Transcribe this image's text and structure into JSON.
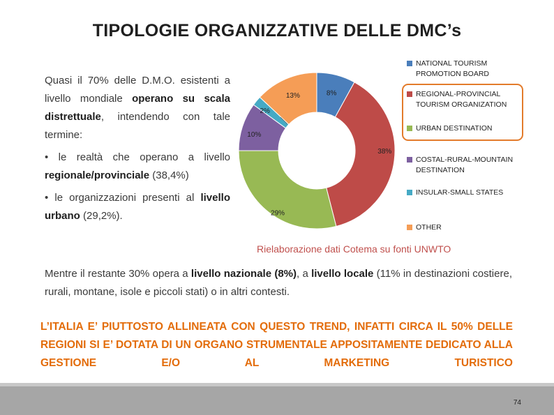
{
  "title": "TIPOLOGIE ORGANIZZATIVE DELLE DMC’s",
  "left": {
    "p1": {
      "t1": "Quasi il 70% delle D.M.O. esistenti a livello mondiale ",
      "b1": "operano su scala distrettuale",
      "t2": ", intendendo con tale termine:"
    },
    "p2": {
      "t1": "• le realtà che operano a livello ",
      "b1": "regionale/provinciale",
      "t2": " (38,4%)"
    },
    "p3": {
      "t1": "• le organizzazioni presenti al ",
      "b1": "livello urbano",
      "t2": " (29,2%)."
    }
  },
  "source": "Rielaborazione dati Cotema su fonti  UNWTO",
  "middle": {
    "t1": "Mentre il restante 30% opera a ",
    "b1": "livello nazionale (8%)",
    "t2": ", a ",
    "b2": "livello locale",
    "t3": " (11% in destinazioni costiere, rurali, montane, isole e piccoli stati) o in altri contesti."
  },
  "callout": "L’ITALIA E’ PIUTTOSTO ALLINEATA CON QUESTO TREND, INFATTI CIRCA IL 50% DELLE REGIONI SI E’ DOTATA DI UN ORGANO STRUMENTALE APPOSITAMENTE DEDICATO ALLA GESTIONE E/O AL MARKETING TURISTICO",
  "page_number": "74",
  "chart_data": {
    "type": "pie",
    "donut": true,
    "slices": [
      {
        "name": "NATIONAL TOURISM PROMOTION BOARD",
        "value": 8,
        "label": "8%",
        "color": "#4a7ebb"
      },
      {
        "name": "REGIONAL-PROVINCIAL TOURISM ORGANIZATION",
        "value": 38,
        "label": "38%",
        "color": "#be4b48"
      },
      {
        "name": "URBAN DESTINATION",
        "value": 29,
        "label": "29%",
        "color": "#98b954"
      },
      {
        "name": "COSTAL-RURAL-MOUNTAIN DESTINATION",
        "value": 10,
        "label": "10%",
        "color": "#7d60a0"
      },
      {
        "name": "INSULAR-SMALL STATES",
        "value": 2,
        "label": "2%",
        "color": "#46aac5"
      },
      {
        "name": "OTHER",
        "value": 13,
        "label": "13%",
        "color": "#f59d56"
      }
    ],
    "legend": {
      "position": "right",
      "highlighted": [
        "REGIONAL-PROVINCIAL TOURISM ORGANIZATION",
        "URBAN DESTINATION"
      ],
      "highlight_color": "#e37b2b"
    }
  }
}
